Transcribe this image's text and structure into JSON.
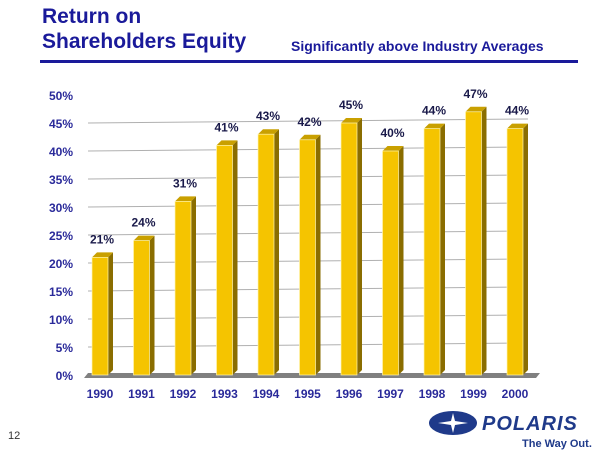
{
  "title_line1": "Return on",
  "title_line2": "Shareholders Equity",
  "subtitle": "Significantly above Industry Averages",
  "page_number": "12",
  "logo": {
    "brand": "POLARIS",
    "tagline": "The Way Out."
  },
  "colors": {
    "title": "#1a1a9a",
    "bar": "#f5c400",
    "bar_side": "#8a6d00",
    "axis_text": "#2a2a9a",
    "label_text": "#1a1a4a"
  },
  "chart_data": {
    "type": "bar",
    "categories": [
      "1990",
      "1991",
      "1992",
      "1993",
      "1994",
      "1995",
      "1996",
      "1997",
      "1998",
      "1999",
      "2000"
    ],
    "values": [
      21,
      24,
      31,
      41,
      43,
      42,
      45,
      40,
      44,
      47,
      44
    ],
    "data_labels": [
      "21%",
      "24%",
      "31%",
      "41%",
      "43%",
      "42%",
      "45%",
      "40%",
      "44%",
      "47%",
      "44%"
    ],
    "yticks": [
      "0%",
      "5%",
      "10%",
      "15%",
      "20%",
      "25%",
      "30%",
      "35%",
      "40%",
      "45%",
      "50%"
    ],
    "ylim": [
      0,
      50
    ],
    "grid": true,
    "style": "3d"
  }
}
